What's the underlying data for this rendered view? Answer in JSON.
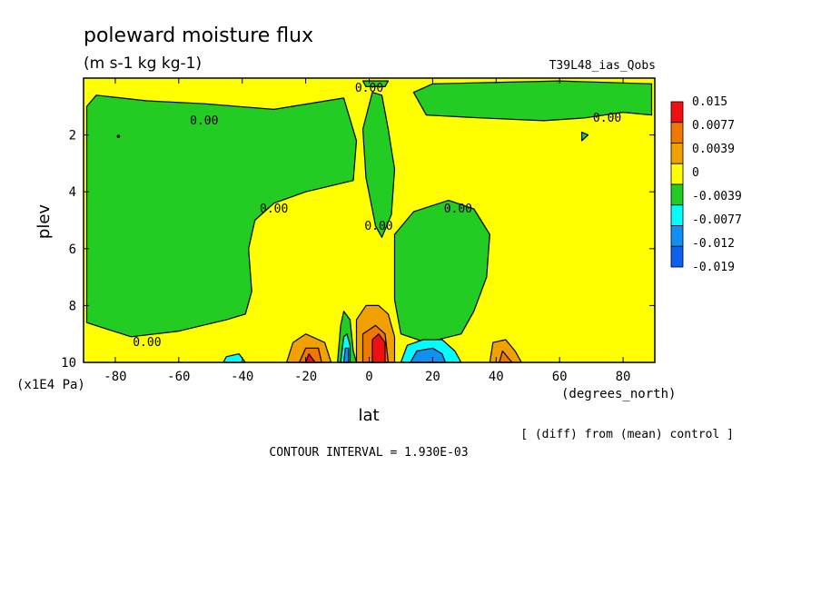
{
  "header": {
    "title": "poleward moisture flux",
    "units": "(m s-1 kg kg-1)",
    "run_name": "T39L48_ias_Qobs"
  },
  "footer": {
    "diff_note": "[ (diff) from (mean) control ]",
    "contour_interval": "CONTOUR INTERVAL = 1.930E-03"
  },
  "colors": {
    "red": "#f01010",
    "dark_orange": "#f07800",
    "orange": "#f0a000",
    "yellow": "#ffff00",
    "green": "#22cc22",
    "cyan": "#00ffff",
    "blue": "#1090f0",
    "dark_blue": "#1060f0"
  },
  "chart_data": {
    "type": "heatmap",
    "title": "poleward moisture flux",
    "subtitle": "(m s-1 kg kg-1)",
    "xlabel": "lat",
    "xlabel_units": "(degrees_north)",
    "ylabel": "plev",
    "ylabel_units": "(x1E4 Pa)",
    "xlim": [
      -90,
      90
    ],
    "ylim": [
      10,
      0
    ],
    "x_ticks": [
      -80,
      -60,
      -40,
      -20,
      0,
      20,
      40,
      60,
      80
    ],
    "x_tick_labels": [
      "-80",
      "-60",
      "-40",
      "-20",
      "0",
      "20",
      "40",
      "60",
      "80"
    ],
    "y_ticks": [
      2,
      4,
      6,
      8,
      10
    ],
    "y_tick_labels": [
      "2",
      "4",
      "6",
      "8",
      "10"
    ],
    "contour_label": "0.00",
    "legend": {
      "placement": "right",
      "levels": [
        "0.015",
        "0.0077",
        "0.0039",
        "0",
        "-0.0039",
        "-0.0077",
        "-0.012",
        "-0.019"
      ],
      "colors": [
        "#f01010",
        "#f07800",
        "#f0a000",
        "#ffff00",
        "#22cc22",
        "#00ffff",
        "#1090f0",
        "#1060f0"
      ]
    },
    "background_class": "yellow",
    "regions": [
      {
        "color": "green",
        "points": [
          [
            -89,
            1.0
          ],
          [
            -86,
            0.6
          ],
          [
            -70,
            0.8
          ],
          [
            -52,
            0.9
          ],
          [
            -30,
            1.1
          ],
          [
            -8,
            0.7
          ],
          [
            -4,
            2.2
          ],
          [
            -5,
            3.6
          ],
          [
            -20,
            4.0
          ],
          [
            -30,
            4.4
          ],
          [
            -36,
            5.0
          ],
          [
            -38,
            6.0
          ],
          [
            -37,
            7.5
          ],
          [
            -39,
            8.3
          ],
          [
            -45,
            8.5
          ],
          [
            -60,
            8.9
          ],
          [
            -75,
            9.1
          ],
          [
            -89,
            8.6
          ]
        ]
      },
      {
        "color": "green",
        "points": [
          [
            1,
            0.5
          ],
          [
            -2,
            1.8
          ],
          [
            -1,
            3.5
          ],
          [
            2,
            5.2
          ],
          [
            4,
            5.6
          ],
          [
            7,
            4.8
          ],
          [
            8,
            3.2
          ],
          [
            6,
            1.8
          ],
          [
            4,
            0.6
          ]
        ]
      },
      {
        "color": "green",
        "points": [
          [
            14,
            0.5
          ],
          [
            18,
            1.3
          ],
          [
            35,
            1.4
          ],
          [
            55,
            1.5
          ],
          [
            68,
            1.4
          ],
          [
            80,
            1.2
          ],
          [
            89,
            1.3
          ],
          [
            89,
            0.2
          ],
          [
            60,
            0.1
          ],
          [
            20,
            0.2
          ]
        ]
      },
      {
        "color": "green",
        "points": [
          [
            8,
            5.5
          ],
          [
            14,
            4.7
          ],
          [
            25,
            4.3
          ],
          [
            33,
            4.6
          ],
          [
            38,
            5.5
          ],
          [
            37,
            7.0
          ],
          [
            33,
            8.2
          ],
          [
            29,
            9.0
          ],
          [
            18,
            9.3
          ],
          [
            10,
            9.0
          ],
          [
            8,
            7.8
          ]
        ]
      },
      {
        "color": "green",
        "points": [
          [
            -10,
            10
          ],
          [
            -9,
            8.7
          ],
          [
            -8,
            8.2
          ],
          [
            -6,
            8.5
          ],
          [
            -5,
            9.6
          ],
          [
            -4,
            10
          ]
        ]
      },
      {
        "color": "green",
        "points": [
          [
            -2,
            0.1
          ],
          [
            6,
            0.1
          ],
          [
            5,
            0.3
          ],
          [
            -1,
            0.3
          ]
        ]
      },
      {
        "color": "green",
        "points": [
          [
            67,
            1.9
          ],
          [
            69,
            2.0
          ],
          [
            67,
            2.2
          ]
        ]
      },
      {
        "color": "cyan",
        "points": [
          [
            -9,
            10
          ],
          [
            -8,
            9.1
          ],
          [
            -7,
            9.0
          ],
          [
            -6,
            9.4
          ],
          [
            -6,
            10
          ]
        ]
      },
      {
        "color": "cyan",
        "points": [
          [
            10,
            10
          ],
          [
            12,
            9.4
          ],
          [
            17,
            9.2
          ],
          [
            23,
            9.2
          ],
          [
            27,
            9.6
          ],
          [
            29,
            10
          ]
        ]
      },
      {
        "color": "cyan",
        "points": [
          [
            -46,
            10
          ],
          [
            -45,
            9.8
          ],
          [
            -41,
            9.7
          ],
          [
            -39,
            10
          ]
        ]
      },
      {
        "color": "blue",
        "points": [
          [
            13,
            10
          ],
          [
            15,
            9.6
          ],
          [
            20,
            9.5
          ],
          [
            23,
            9.7
          ],
          [
            24,
            10
          ]
        ]
      },
      {
        "color": "blue",
        "points": [
          [
            -8,
            10
          ],
          [
            -7.5,
            9.5
          ],
          [
            -6.5,
            9.5
          ],
          [
            -6.5,
            10
          ]
        ]
      },
      {
        "color": "orange",
        "points": [
          [
            -26,
            10
          ],
          [
            -24,
            9.3
          ],
          [
            -20,
            9.0
          ],
          [
            -14,
            9.3
          ],
          [
            -12,
            10
          ]
        ]
      },
      {
        "color": "orange",
        "points": [
          [
            -4,
            10
          ],
          [
            -4,
            8.5
          ],
          [
            -1,
            8.0
          ],
          [
            3,
            8.0
          ],
          [
            6,
            8.3
          ],
          [
            8,
            9.1
          ],
          [
            8,
            10
          ]
        ]
      },
      {
        "color": "orange",
        "points": [
          [
            38,
            10
          ],
          [
            39,
            9.3
          ],
          [
            43,
            9.2
          ],
          [
            46,
            9.6
          ],
          [
            48,
            10
          ]
        ]
      },
      {
        "color": "dark_orange",
        "points": [
          [
            -22,
            10
          ],
          [
            -20,
            9.5
          ],
          [
            -16,
            9.5
          ],
          [
            -15,
            10
          ]
        ]
      },
      {
        "color": "dark_orange",
        "points": [
          [
            -2,
            10
          ],
          [
            -2,
            9.0
          ],
          [
            2,
            8.7
          ],
          [
            5,
            9.0
          ],
          [
            6,
            10
          ]
        ]
      },
      {
        "color": "dark_orange",
        "points": [
          [
            41,
            10
          ],
          [
            42,
            9.6
          ],
          [
            45,
            10
          ]
        ]
      },
      {
        "color": "red",
        "points": [
          [
            1,
            10
          ],
          [
            1,
            9.2
          ],
          [
            3,
            9.0
          ],
          [
            5,
            9.3
          ],
          [
            5,
            10
          ]
        ]
      },
      {
        "color": "red",
        "points": [
          [
            -20,
            10
          ],
          [
            -19,
            9.7
          ],
          [
            -17,
            10
          ]
        ]
      }
    ]
  }
}
